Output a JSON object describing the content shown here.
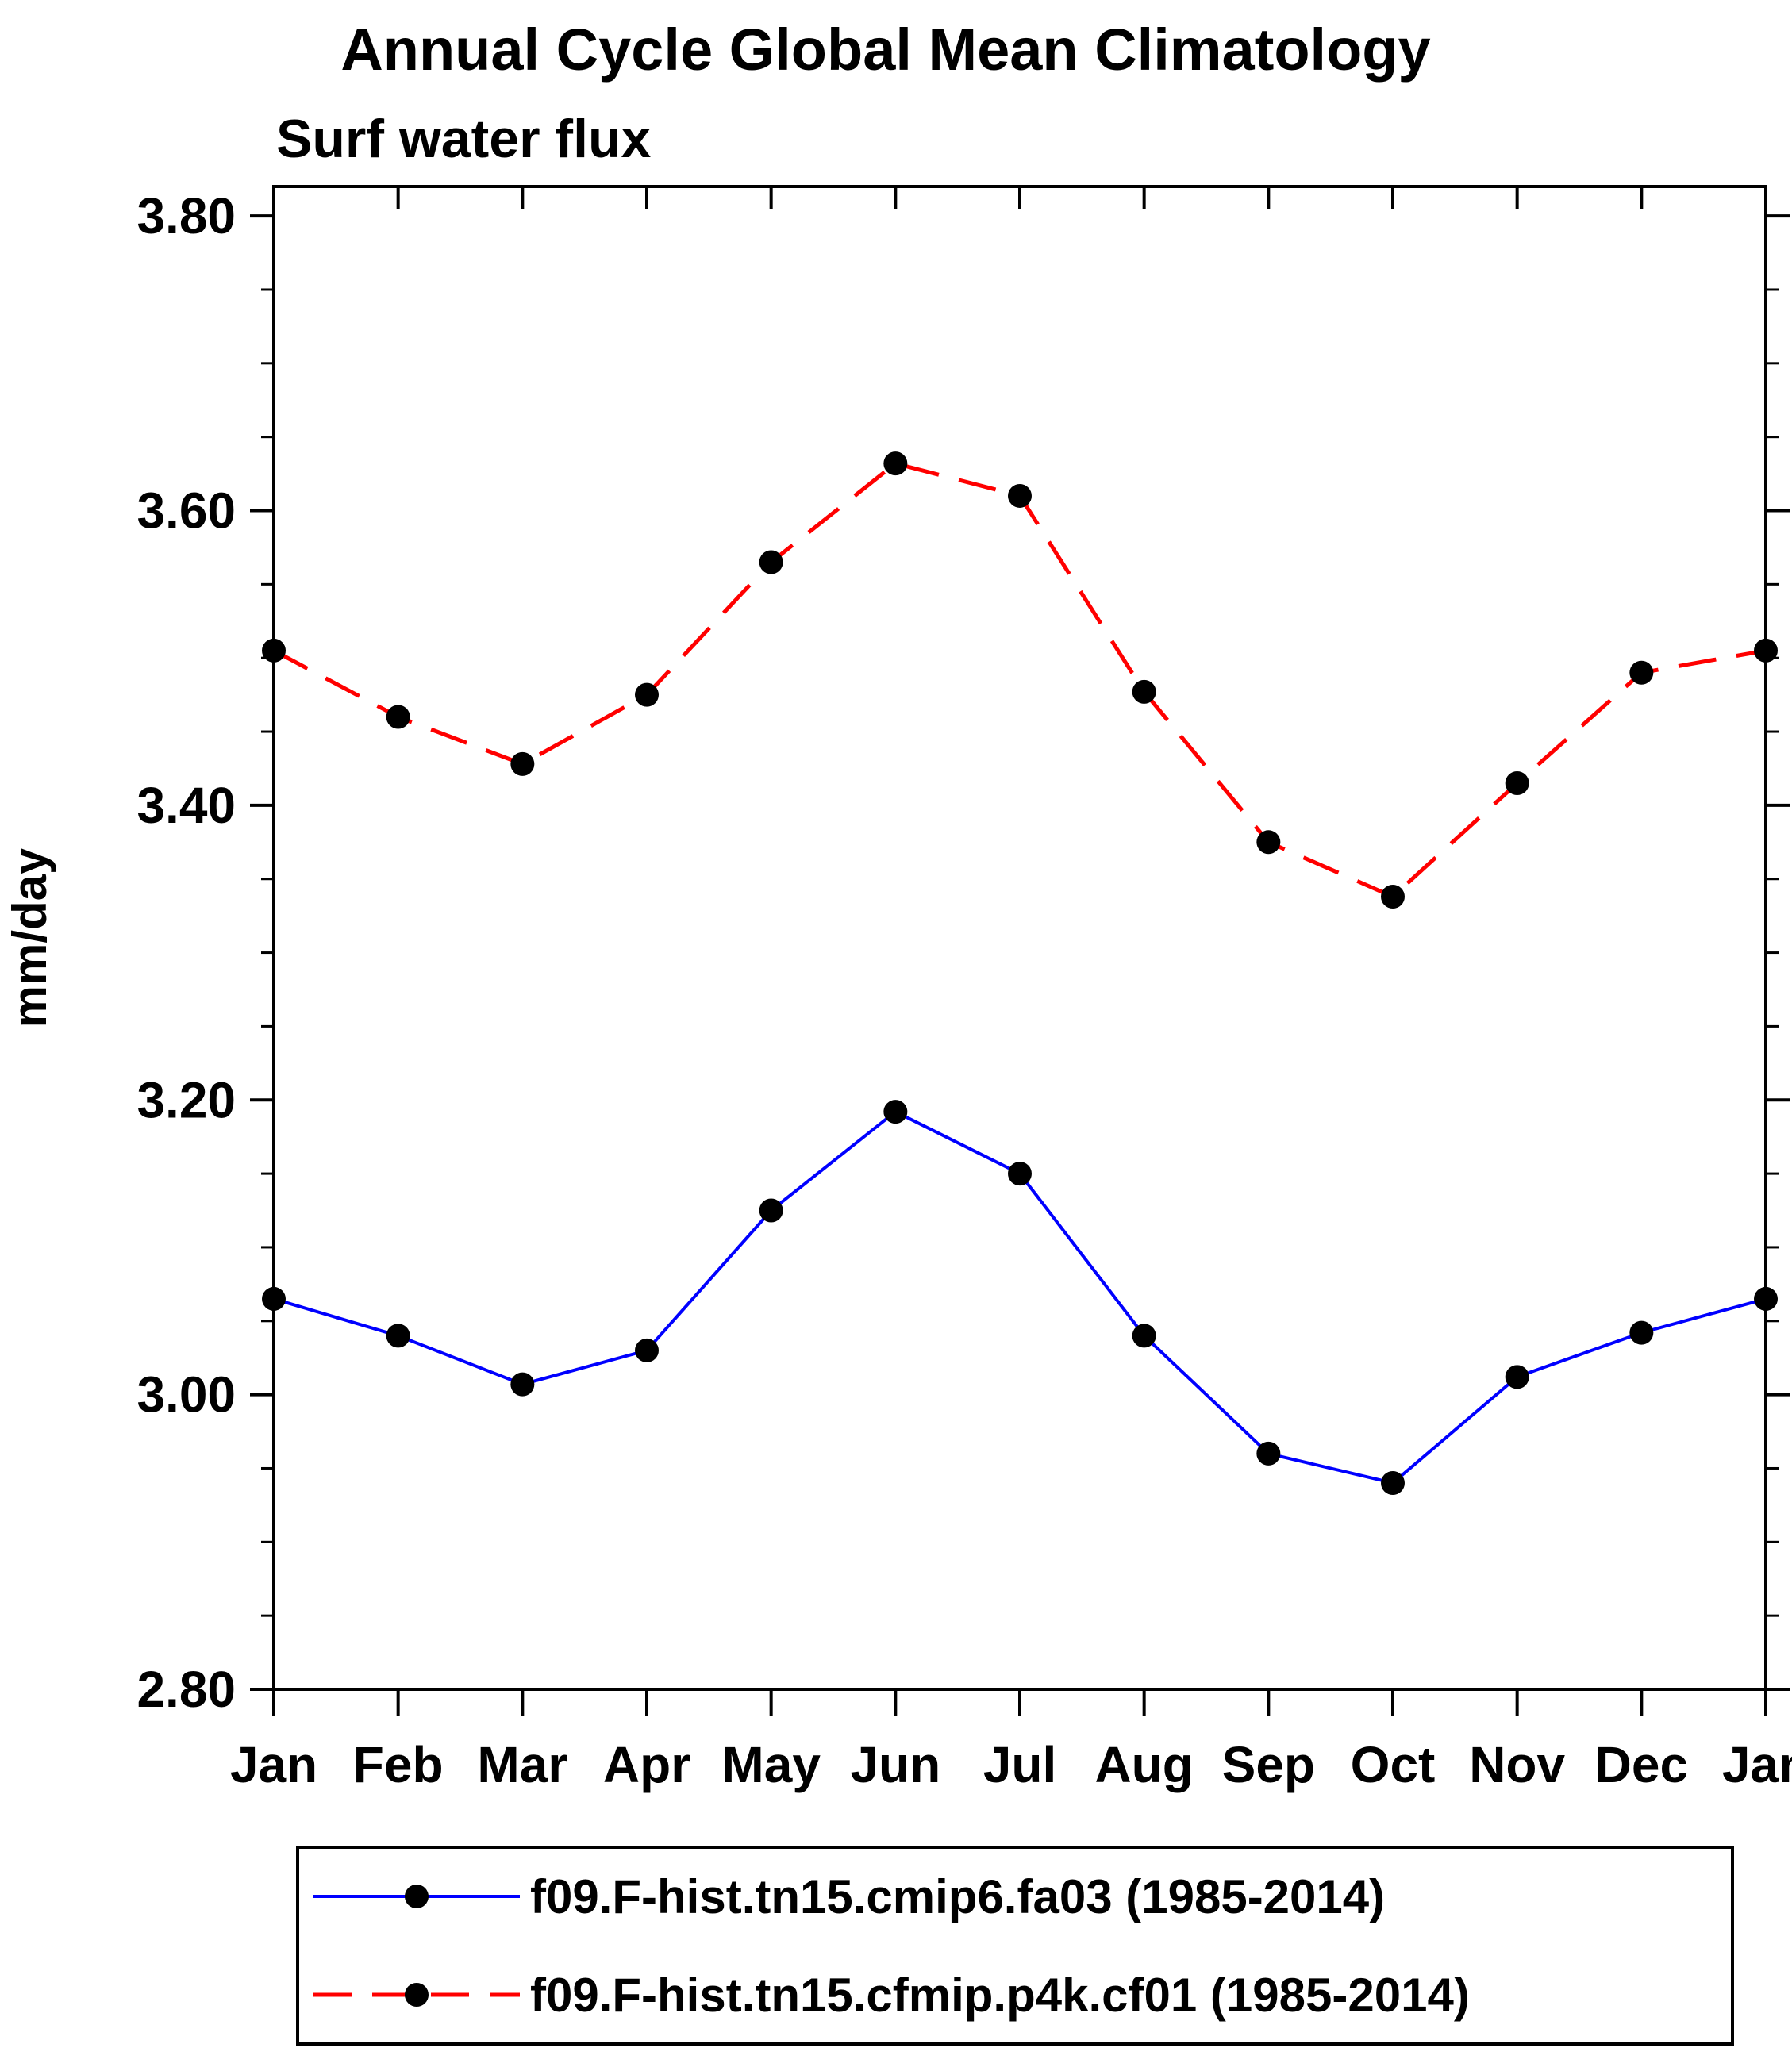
{
  "page": {
    "background": "#ffffff"
  },
  "chart_data": {
    "type": "line",
    "title": "Annual Cycle Global Mean Climatology",
    "subtitle": "Surf water flux",
    "ylabel": "mm/day",
    "xlabel": "",
    "categories": [
      "Jan",
      "Feb",
      "Mar",
      "Apr",
      "May",
      "Jun",
      "Jul",
      "Aug",
      "Sep",
      "Oct",
      "Nov",
      "Dec",
      "Jan"
    ],
    "ylim": [
      2.8,
      3.82
    ],
    "yticks_major": [
      2.8,
      3.0,
      3.2,
      3.4,
      3.6,
      3.8
    ],
    "ytick_labels": [
      "2.80",
      "3.00",
      "3.20",
      "3.40",
      "3.60",
      "3.80"
    ],
    "ytick_minor_step": 0.05,
    "grid": false,
    "legend_position": "bottom",
    "axis_color": "#000000",
    "series": [
      {
        "name": "f09.F-hist.tn15.cmip6.fa03 (1985-2014)",
        "color": "#0000ff",
        "line_style": "solid",
        "marker": "circle",
        "marker_color": "#000000",
        "values": [
          3.065,
          3.04,
          3.007,
          3.03,
          3.125,
          3.192,
          3.15,
          3.04,
          2.96,
          2.94,
          3.012,
          3.042,
          3.065
        ]
      },
      {
        "name": "f09.F-hist.tn15.cfmip.p4k.cf01 (1985-2014)",
        "color": "#ff0000",
        "line_style": "dashed",
        "marker": "circle",
        "marker_color": "#000000",
        "values": [
          3.505,
          3.46,
          3.428,
          3.475,
          3.565,
          3.632,
          3.61,
          3.477,
          3.375,
          3.338,
          3.415,
          3.49,
          3.505
        ]
      }
    ]
  }
}
